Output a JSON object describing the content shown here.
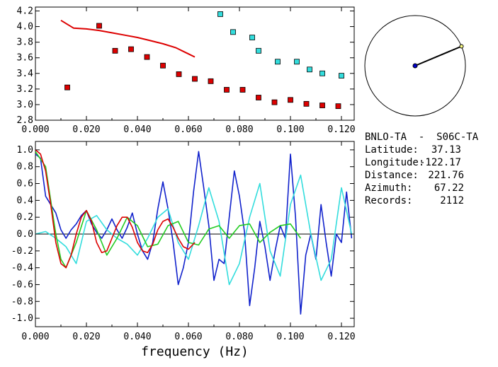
{
  "station_info": {
    "pair": "BNLO-TA  -  S06C-TA",
    "latitude_label": "Latitude:",
    "latitude_value": "37.13",
    "longitude_label": "Longitude:",
    "longitude_value": "-122.17",
    "distance_label": "Distance:",
    "distance_value": "221.76",
    "azimuth_label": "Azimuth:",
    "azimuth_value": "67.22",
    "records_label": "Records:",
    "records_value": "2112"
  },
  "azimuth_dial": {
    "azimuth_deg": 67.22
  },
  "colors": {
    "red": "#dd0000",
    "cyan": "#33dddd",
    "blue": "#0000cc",
    "green": "#22cc22",
    "line_cyan": "#33dddd",
    "line_blue": "#1122cc"
  },
  "chart_data": [
    {
      "type": "scatter",
      "xlim": [
        0.0,
        0.125
      ],
      "ylim": [
        2.8,
        4.25
      ],
      "x_ticks": [
        "0.000",
        "0.020",
        "0.040",
        "0.060",
        "0.080",
        "0.100",
        "0.120"
      ],
      "y_ticks": [
        "2.8",
        "3.0",
        "3.2",
        "3.4",
        "3.6",
        "3.8",
        "4.0",
        "4.2"
      ],
      "series": [
        {
          "marker": "square",
          "color": "red",
          "x": [
            0.0125,
            0.025,
            0.03125,
            0.0375,
            0.04375,
            0.05,
            0.05625,
            0.0625,
            0.06875,
            0.075,
            0.08125,
            0.0875,
            0.09375,
            0.1,
            0.10625,
            0.1125,
            0.11875
          ],
          "y": [
            3.22,
            4.01,
            3.69,
            3.71,
            3.61,
            3.5,
            3.39,
            3.33,
            3.3,
            3.19,
            3.19,
            3.09,
            3.03,
            3.06,
            3.01,
            2.99,
            2.98
          ]
        },
        {
          "marker": "square",
          "color": "cyan",
          "x": [
            0.0725,
            0.0775,
            0.085,
            0.0875,
            0.095,
            0.1025,
            0.1075,
            0.1125,
            0.12
          ],
          "y": [
            4.16,
            3.93,
            3.86,
            3.69,
            3.55,
            3.55,
            3.45,
            3.4,
            3.37
          ]
        },
        {
          "marker": "line",
          "color": "red",
          "x": [
            0.01,
            0.015,
            0.02,
            0.025,
            0.03,
            0.035,
            0.04,
            0.045,
            0.05,
            0.055,
            0.06,
            0.0625
          ],
          "y": [
            4.08,
            3.98,
            3.97,
            3.95,
            3.92,
            3.89,
            3.86,
            3.82,
            3.78,
            3.73,
            3.65,
            3.61
          ]
        }
      ]
    },
    {
      "type": "line",
      "xlim": [
        0.0,
        0.125
      ],
      "ylim": [
        -1.1,
        1.1
      ],
      "x_ticks": [
        "0.000",
        "0.020",
        "0.040",
        "0.060",
        "0.080",
        "0.100",
        "0.120"
      ],
      "y_ticks": [
        "-1.0",
        "-0.8",
        "-0.6",
        "-0.4",
        "-0.2",
        "0.0",
        "0.2",
        "0.4",
        "0.6",
        "0.8",
        "1.0"
      ],
      "xlabel": "frequency (Hz)",
      "series": [
        {
          "color": "line_blue",
          "x": [
            0.0,
            0.002,
            0.004,
            0.006,
            0.008,
            0.01,
            0.012,
            0.014,
            0.016,
            0.018,
            0.02,
            0.022,
            0.024,
            0.026,
            0.028,
            0.03,
            0.032,
            0.034,
            0.036,
            0.038,
            0.04,
            0.042,
            0.044,
            0.046,
            0.048,
            0.05,
            0.052,
            0.054,
            0.056,
            0.058,
            0.06,
            0.062,
            0.064,
            0.066,
            0.068,
            0.07,
            0.072,
            0.074,
            0.076,
            0.078,
            0.08,
            0.082,
            0.084,
            0.086,
            0.088,
            0.09,
            0.092,
            0.094,
            0.096,
            0.098,
            0.1,
            0.102,
            0.104,
            0.106,
            0.108,
            0.11,
            0.112,
            0.114,
            0.116,
            0.118,
            0.12,
            0.122,
            0.124
          ],
          "y": [
            0.95,
            0.9,
            0.45,
            0.35,
            0.25,
            0.05,
            -0.05,
            0.05,
            0.12,
            0.22,
            0.28,
            0.12,
            0.02,
            -0.05,
            0.05,
            0.18,
            0.05,
            -0.05,
            0.08,
            0.25,
            0.0,
            -0.2,
            -0.3,
            -0.1,
            0.3,
            0.62,
            0.3,
            -0.1,
            -0.6,
            -0.4,
            -0.1,
            0.5,
            0.98,
            0.55,
            0.1,
            -0.55,
            -0.3,
            -0.35,
            0.2,
            0.75,
            0.45,
            0.02,
            -0.85,
            -0.4,
            0.15,
            -0.15,
            -0.55,
            -0.2,
            0.1,
            -0.05,
            0.95,
            0.2,
            -0.95,
            -0.25,
            0.0,
            -0.3,
            0.35,
            -0.1,
            -0.5,
            0.0,
            -0.1,
            0.5,
            -0.05
          ]
        },
        {
          "color": "line_cyan",
          "x": [
            0.0,
            0.004,
            0.008,
            0.012,
            0.016,
            0.02,
            0.024,
            0.028,
            0.032,
            0.036,
            0.04,
            0.044,
            0.048,
            0.052,
            0.056,
            0.06,
            0.064,
            0.068,
            0.072,
            0.076,
            0.08,
            0.084,
            0.088,
            0.092,
            0.096,
            0.1,
            0.104,
            0.108,
            0.112,
            0.116,
            0.12,
            0.124
          ],
          "y": [
            0.0,
            0.03,
            -0.05,
            -0.15,
            -0.35,
            0.15,
            0.22,
            0.05,
            -0.05,
            -0.12,
            -0.25,
            -0.05,
            0.2,
            0.3,
            -0.1,
            -0.3,
            0.1,
            0.55,
            0.15,
            -0.6,
            -0.35,
            0.2,
            0.6,
            -0.2,
            -0.5,
            0.35,
            0.7,
            0.0,
            -0.55,
            -0.3,
            0.55,
            0.0
          ]
        },
        {
          "color": "green",
          "x": [
            0.0,
            0.004,
            0.008,
            0.01,
            0.012,
            0.016,
            0.02,
            0.024,
            0.028,
            0.032,
            0.036,
            0.04,
            0.044,
            0.048,
            0.052,
            0.056,
            0.06,
            0.064,
            0.068,
            0.072,
            0.076,
            0.08,
            0.084,
            0.088,
            0.092,
            0.096,
            0.1,
            0.104
          ],
          "y": [
            0.98,
            0.8,
            0.0,
            -0.3,
            -0.4,
            -0.1,
            0.28,
            0.05,
            -0.25,
            -0.05,
            0.2,
            0.1,
            -0.15,
            -0.12,
            0.1,
            0.15,
            -0.1,
            -0.13,
            0.06,
            0.1,
            -0.05,
            0.1,
            0.12,
            -0.1,
            0.02,
            0.1,
            0.12,
            -0.05
          ]
        },
        {
          "color": "red",
          "x": [
            0.0,
            0.002,
            0.004,
            0.006,
            0.008,
            0.01,
            0.012,
            0.014,
            0.016,
            0.018,
            0.02,
            0.022,
            0.024,
            0.026,
            0.028,
            0.03,
            0.032,
            0.034,
            0.036,
            0.038,
            0.04,
            0.042,
            0.044,
            0.046,
            0.048,
            0.05,
            0.052,
            0.054,
            0.056,
            0.058,
            0.06,
            0.0625
          ],
          "y": [
            1.0,
            0.95,
            0.75,
            0.35,
            -0.1,
            -0.35,
            -0.4,
            -0.25,
            0.0,
            0.2,
            0.28,
            0.15,
            -0.1,
            -0.22,
            -0.2,
            -0.05,
            0.1,
            0.2,
            0.2,
            0.08,
            -0.1,
            -0.2,
            -0.22,
            -0.12,
            0.05,
            0.15,
            0.18,
            0.08,
            -0.05,
            -0.15,
            -0.18,
            -0.1
          ]
        }
      ]
    }
  ]
}
